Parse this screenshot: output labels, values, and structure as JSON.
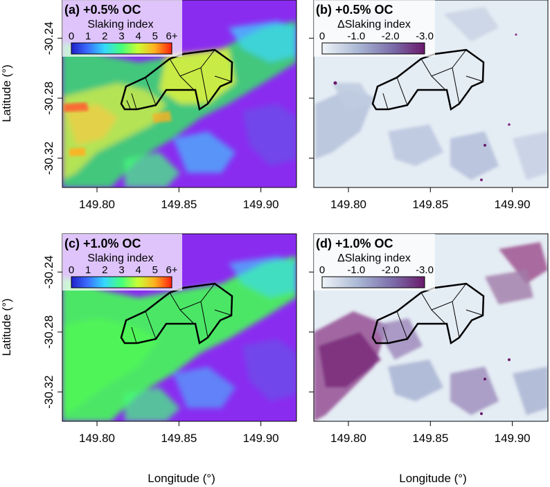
{
  "axes": {
    "xlabel": "Longitude (°)",
    "ylabel": "Latitude (°)",
    "x_ticks": [
      "149.80",
      "149.85",
      "149.90"
    ],
    "y_ticks": [
      "-30.24",
      "-30.28",
      "-30.32"
    ]
  },
  "panels": [
    {
      "title": "(a) +0.5% OC",
      "legend_title": "Slaking index",
      "legend_ticks": [
        "0",
        "1",
        "2",
        "3",
        "4",
        "5",
        "6+"
      ],
      "colormap": "rainbow",
      "legend_colors": [
        "#2020c8",
        "#3a6cff",
        "#35d8ff",
        "#45ff7a",
        "#c8ff35",
        "#ffb020",
        "#ff2010"
      ],
      "base_color": "#8a2cf0"
    },
    {
      "title": "(b) +0.5% OC",
      "legend_title": "ΔSlaking index",
      "legend_ticks": [
        "0",
        "-1.0",
        "-2.0",
        "-3.0"
      ],
      "colormap": "sequential-purple",
      "legend_colors": [
        "#f0f4f8",
        "#aab8d4",
        "#7a6aa8",
        "#6a1a6a"
      ],
      "base_color": "#e4ecf4"
    },
    {
      "title": "(c) +1.0% OC",
      "legend_title": "Slaking index",
      "legend_ticks": [
        "0",
        "1",
        "2",
        "3",
        "4",
        "5",
        "6+"
      ],
      "colormap": "rainbow",
      "legend_colors": [
        "#2020c8",
        "#3a6cff",
        "#35d8ff",
        "#45ff7a",
        "#c8ff35",
        "#ffb020",
        "#ff2010"
      ],
      "base_color": "#8a2cf0"
    },
    {
      "title": "(d) +1.0% OC",
      "legend_title": "ΔSlaking index",
      "legend_ticks": [
        "0",
        "-1.0",
        "-2.0",
        "-3.0"
      ],
      "colormap": "sequential-purple",
      "legend_colors": [
        "#f0f4f8",
        "#aab8d4",
        "#7a6aa8",
        "#6a1a6a"
      ],
      "base_color": "#e4ecf4"
    }
  ]
}
